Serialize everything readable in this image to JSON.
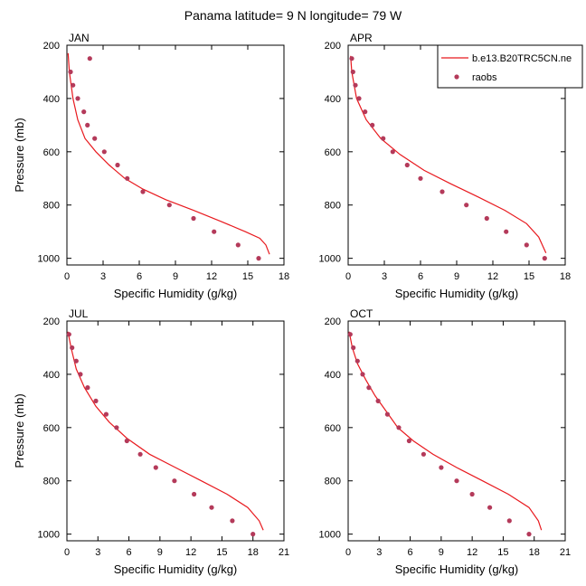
{
  "page_title": "Panama  latitude= 9 N longitude= 79 W",
  "legend": {
    "model_label": "b.e13.B20TRC5CN.ne",
    "obs_label": "raobs"
  },
  "colors": {
    "model": "#e8191e",
    "obs": "#b43a5a",
    "axis": "#000000"
  },
  "chart_data": [
    {
      "type": "line",
      "title": "JAN",
      "xlabel": "Specific Humidity (g/kg)",
      "ylabel": "Pressure (mb)",
      "xlim": [
        0,
        18
      ],
      "ylim": [
        200,
        1025
      ],
      "y_reversed": true,
      "xticks": [
        0,
        3,
        6,
        9,
        12,
        15,
        18
      ],
      "yticks": [
        200,
        400,
        600,
        800,
        1000
      ],
      "series": [
        {
          "name": "b.e13.B20TRC5CN.ne",
          "kind": "line",
          "x": [
            0.1,
            0.2,
            0.5,
            0.9,
            1.5,
            2.4,
            3.5,
            4.8,
            6.3,
            8.2,
            10.5,
            12.7,
            14.8,
            16.0,
            16.5,
            16.8
          ],
          "y": [
            230,
            300,
            400,
            480,
            550,
            600,
            650,
            700,
            740,
            780,
            820,
            860,
            900,
            925,
            950,
            985
          ]
        },
        {
          "name": "raobs",
          "kind": "scatter",
          "x": [
            1.9,
            0.3,
            0.5,
            0.9,
            1.4,
            1.7,
            2.3,
            3.1,
            4.2,
            5.0,
            6.3,
            8.5,
            10.5,
            12.2,
            14.2,
            15.9
          ],
          "y": [
            250,
            300,
            350,
            400,
            450,
            500,
            550,
            600,
            650,
            700,
            750,
            800,
            850,
            900,
            950,
            1000
          ]
        }
      ]
    },
    {
      "type": "line",
      "title": "APR",
      "xlabel": "Specific Humidity (g/kg)",
      "ylabel": "",
      "xlim": [
        0,
        18
      ],
      "ylim": [
        200,
        1025
      ],
      "y_reversed": true,
      "xticks": [
        0,
        3,
        6,
        9,
        12,
        15,
        18
      ],
      "yticks": [
        200,
        400,
        600,
        800,
        1000
      ],
      "series": [
        {
          "name": "b.e13.B20TRC5CN.ne",
          "kind": "line",
          "x": [
            0.2,
            0.3,
            0.7,
            1.5,
            2.7,
            4.3,
            6.3,
            8.5,
            10.8,
            13.0,
            14.8,
            15.8,
            16.4
          ],
          "y": [
            240,
            300,
            400,
            480,
            550,
            610,
            670,
            720,
            770,
            820,
            870,
            920,
            980
          ]
        },
        {
          "name": "raobs",
          "kind": "scatter",
          "x": [
            0.3,
            0.4,
            0.6,
            0.9,
            1.4,
            2.0,
            2.9,
            3.7,
            4.9,
            6.0,
            7.8,
            9.8,
            11.5,
            13.1,
            14.8,
            16.3
          ],
          "y": [
            250,
            300,
            350,
            400,
            450,
            500,
            550,
            600,
            650,
            700,
            750,
            800,
            850,
            900,
            950,
            1000
          ]
        }
      ]
    },
    {
      "type": "line",
      "title": "JUL",
      "xlabel": "Specific Humidity (g/kg)",
      "ylabel": "Pressure (mb)",
      "xlim": [
        0,
        21
      ],
      "ylim": [
        200,
        1025
      ],
      "y_reversed": true,
      "xticks": [
        0,
        3,
        6,
        9,
        12,
        15,
        18,
        21
      ],
      "yticks": [
        200,
        400,
        600,
        800,
        1000
      ],
      "series": [
        {
          "name": "b.e13.B20TRC5CN.ne",
          "kind": "line",
          "x": [
            0.1,
            0.4,
            0.9,
            1.7,
            2.8,
            4.1,
            5.8,
            8.0,
            10.5,
            13.0,
            15.5,
            17.5,
            18.6,
            19.0
          ],
          "y": [
            240,
            300,
            380,
            450,
            520,
            580,
            640,
            700,
            750,
            800,
            850,
            900,
            950,
            985
          ]
        },
        {
          "name": "raobs",
          "kind": "scatter",
          "x": [
            0.2,
            0.5,
            0.9,
            1.3,
            2.0,
            2.8,
            3.8,
            4.8,
            5.8,
            7.1,
            8.6,
            10.4,
            12.3,
            14.0,
            16.0,
            18.0
          ],
          "y": [
            250,
            300,
            350,
            400,
            450,
            500,
            550,
            600,
            650,
            700,
            750,
            800,
            850,
            900,
            950,
            1000
          ]
        }
      ]
    },
    {
      "type": "line",
      "title": "OCT",
      "xlabel": "Specific Humidity (g/kg)",
      "ylabel": "",
      "xlim": [
        0,
        21
      ],
      "ylim": [
        200,
        1025
      ],
      "y_reversed": true,
      "xticks": [
        0,
        3,
        6,
        9,
        12,
        15,
        18,
        21
      ],
      "yticks": [
        200,
        400,
        600,
        800,
        1000
      ],
      "series": [
        {
          "name": "b.e13.B20TRC5CN.ne",
          "kind": "line",
          "x": [
            0.1,
            0.4,
            0.9,
            1.7,
            2.6,
            3.7,
            4.8,
            6.3,
            8.2,
            10.5,
            13.0,
            15.5,
            17.5,
            18.4,
            18.7
          ],
          "y": [
            240,
            300,
            360,
            420,
            480,
            540,
            600,
            650,
            700,
            750,
            800,
            850,
            900,
            950,
            985
          ]
        },
        {
          "name": "raobs",
          "kind": "scatter",
          "x": [
            0.2,
            0.5,
            0.9,
            1.4,
            2.0,
            2.9,
            3.8,
            4.9,
            5.9,
            7.3,
            9.0,
            10.5,
            12.0,
            13.7,
            15.6,
            17.5
          ],
          "y": [
            250,
            300,
            350,
            400,
            450,
            500,
            550,
            600,
            650,
            700,
            750,
            800,
            850,
            900,
            950,
            1000
          ]
        }
      ]
    }
  ]
}
